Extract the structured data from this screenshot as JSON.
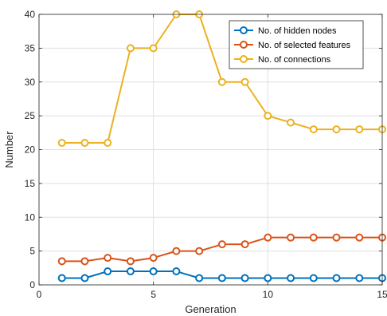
{
  "chart_data": {
    "type": "line",
    "xlabel": "Generation",
    "ylabel": "Number",
    "xlim": [
      0,
      15
    ],
    "ylim": [
      0,
      40
    ],
    "xticks": [
      0,
      5,
      10,
      15
    ],
    "yticks": [
      0,
      5,
      10,
      15,
      20,
      25,
      30,
      35,
      40
    ],
    "grid": true,
    "legend_position": "top-right",
    "x": [
      1,
      2,
      3,
      4,
      5,
      6,
      7,
      8,
      9,
      10,
      11,
      12,
      13,
      14,
      15
    ],
    "series": [
      {
        "name": "No. of hidden nodes",
        "color": "#0072BD",
        "values": [
          1,
          1,
          2,
          2,
          2,
          2,
          1,
          1,
          1,
          1,
          1,
          1,
          1,
          1,
          1
        ]
      },
      {
        "name": "No. of selected features",
        "color": "#D95319",
        "values": [
          3.5,
          3.5,
          4,
          3.5,
          4,
          5,
          5,
          6,
          6,
          7,
          7,
          7,
          7,
          7,
          7
        ]
      },
      {
        "name": "No. of connections",
        "color": "#EDB120",
        "values": [
          21,
          21,
          21,
          35,
          35,
          40,
          40,
          30,
          30,
          25,
          24,
          23,
          23,
          23,
          23
        ]
      }
    ]
  }
}
